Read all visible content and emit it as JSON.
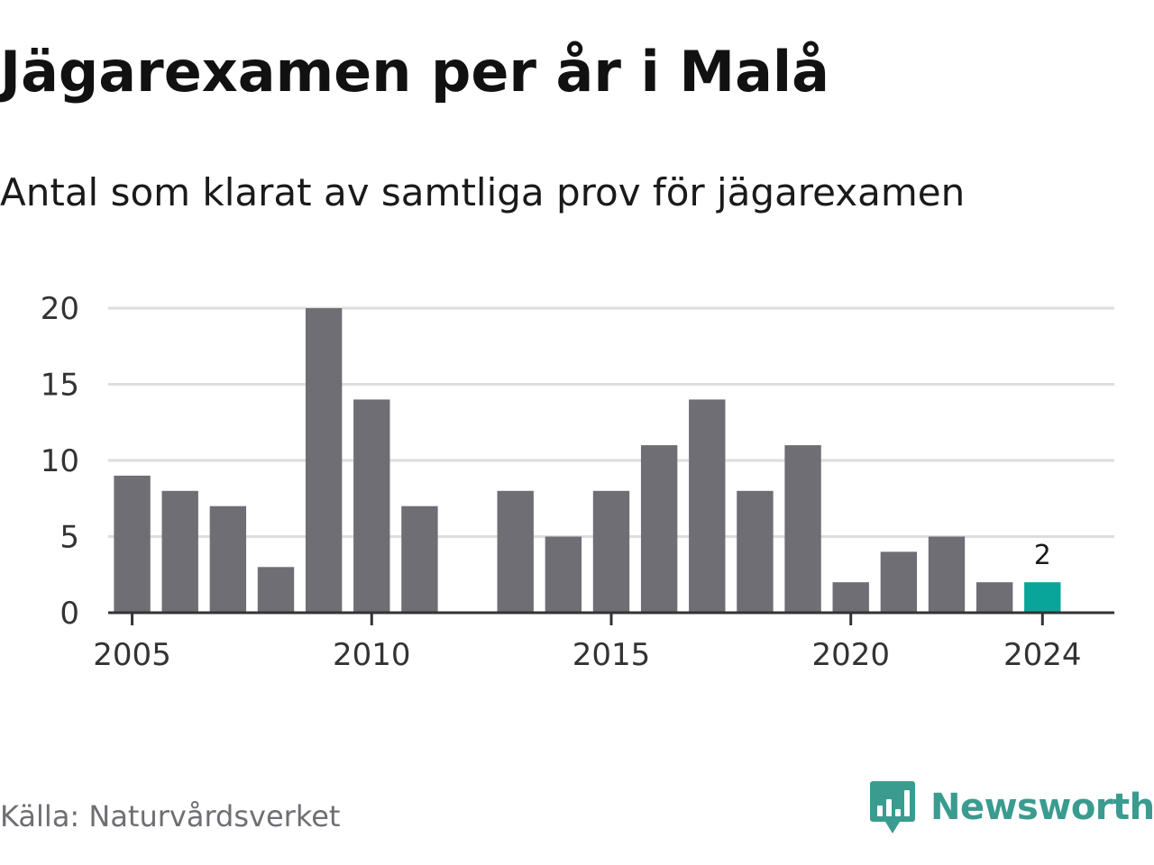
{
  "header": {
    "title": "Jägarexamen per år i Malå",
    "subtitle": "Antal som klarat av samtliga prov för jägarexamen"
  },
  "footer": {
    "source": "Källa: Naturvårdsverket",
    "brand_name": "Newsworthy",
    "brand_icon": "newsworthy-chart-icon"
  },
  "colors": {
    "bar": "#6f6e74",
    "highlight": "#0aa59a",
    "grid": "#dddddd",
    "axis": "#333333",
    "brand": "#3a9b8f"
  },
  "chart_data": {
    "type": "bar",
    "title": "Jägarexamen per år i Malå",
    "subtitle": "Antal som klarat av samtliga prov för jägarexamen",
    "xlabel": "",
    "ylabel": "",
    "x": [
      2005,
      2006,
      2007,
      2008,
      2009,
      2010,
      2011,
      2012,
      2013,
      2014,
      2015,
      2016,
      2017,
      2018,
      2019,
      2020,
      2021,
      2022,
      2023,
      2024
    ],
    "values": [
      9,
      8,
      7,
      3,
      20,
      14,
      7,
      0,
      8,
      5,
      8,
      11,
      14,
      8,
      11,
      2,
      4,
      5,
      2,
      2
    ],
    "highlight_x": 2024,
    "data_labels": [
      {
        "x": 2024,
        "text": "2"
      }
    ],
    "x_ticks": [
      2005,
      2010,
      2015,
      2020,
      2024
    ],
    "y_ticks": [
      0,
      5,
      10,
      15,
      20
    ],
    "ylim": [
      0,
      20
    ],
    "xlim": [
      2004.5,
      2025.5
    ],
    "grid": "horizontal",
    "legend": "none"
  }
}
